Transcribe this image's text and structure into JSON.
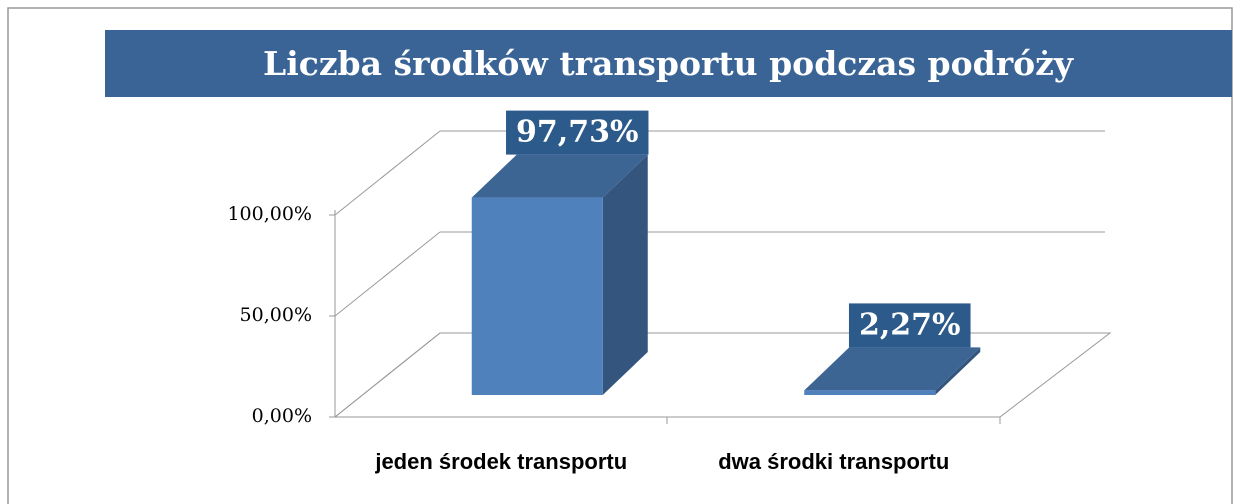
{
  "chart_data": {
    "type": "bar3d",
    "title": "Liczba środków transportu podczas podróży",
    "categories": [
      "jeden środek transportu",
      "dwa środki transportu"
    ],
    "values": [
      97.73,
      2.27
    ],
    "value_labels": [
      "97,73%",
      "2,27%"
    ],
    "color": "#4f81bd",
    "ylim": [
      0,
      100
    ],
    "yticks": [
      {
        "value": 0,
        "label": "0,00%"
      },
      {
        "value": 50,
        "label": "50,00%"
      },
      {
        "value": 100,
        "label": "100,00%"
      }
    ],
    "grid": true
  }
}
